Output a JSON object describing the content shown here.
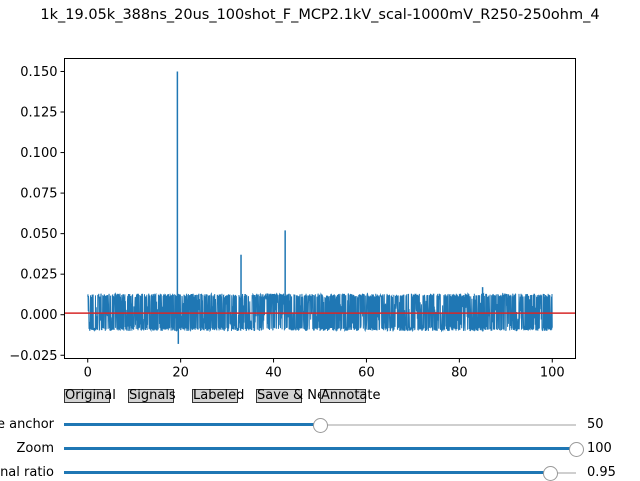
{
  "title": "1k_19.05k_388ns_20us_100shot_F_MCP2.1kV_scal-1000mV_R250-250ohm_4",
  "buttons": {
    "original": "Original",
    "signals": "Signals",
    "labeled": "Labeled",
    "save_next": "Save & Next",
    "annotate": "Annotate"
  },
  "sliders": [
    {
      "label": "Time anchor",
      "value_text": "50",
      "fraction": 0.5
    },
    {
      "label": "Zoom",
      "value_text": "100",
      "fraction": 1.0
    },
    {
      "label": "Signal ratio",
      "value_text": "0.95",
      "fraction": 0.95
    }
  ],
  "colors": {
    "series": "#1f77b4",
    "hline": "#d62728"
  },
  "chart_data": {
    "type": "line",
    "xlim": [
      -5,
      105
    ],
    "ylim": [
      -0.027,
      0.158
    ],
    "xticks": [
      0,
      20,
      40,
      60,
      80,
      100
    ],
    "xtick_labels": [
      "0",
      "20",
      "40",
      "60",
      "80",
      "100"
    ],
    "yticks": [
      -0.025,
      0,
      0.025,
      0.05,
      0.075,
      0.1,
      0.125,
      0.15
    ],
    "ytick_labels": [
      "−0.025",
      "0.000",
      "0.025",
      "0.050",
      "0.075",
      "0.100",
      "0.125",
      "0.150"
    ],
    "series": [
      {
        "noise_band": {
          "x_range": [
            0,
            100
          ],
          "y_range": [
            -0.01,
            0.013
          ]
        },
        "spikes": [
          {
            "x": 19.3,
            "y": 0.15
          },
          {
            "x": 19.5,
            "y": -0.018
          },
          {
            "x": 33.0,
            "y": 0.037
          },
          {
            "x": 42.5,
            "y": 0.052
          },
          {
            "x": 85.0,
            "y": 0.017
          }
        ]
      }
    ],
    "hline": {
      "y": 0.001
    },
    "grid": false
  }
}
